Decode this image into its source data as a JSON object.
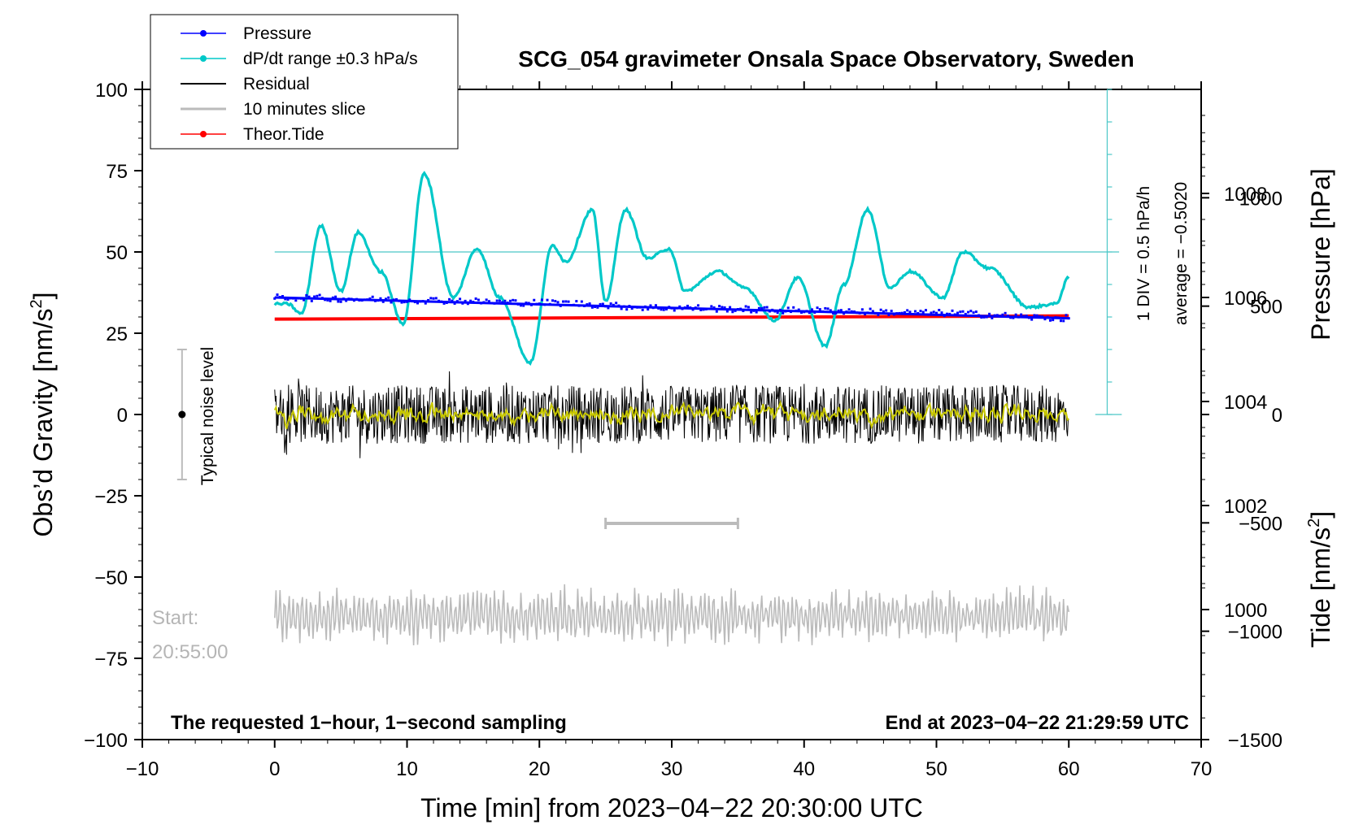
{
  "chart_data": {
    "type": "line",
    "title": "SCG_054 gravimeter Onsala Space Observatory, Sweden",
    "xlabel": "Time [min] from 2023−04−22 20:30:00 UTC",
    "xlim": [
      -10,
      70
    ],
    "xticks": [
      "−10",
      "0",
      "10",
      "20",
      "30",
      "40",
      "50",
      "60",
      "70"
    ],
    "ylabel_left": "Obs’d Gravity [nm/s",
    "ylabel_left_unit_exp": "2",
    "ylabel_left_unit_close": "]",
    "ylim_left": [
      -100,
      100
    ],
    "yticks_left": [
      "100",
      "75",
      "50",
      "25",
      "0",
      "−25",
      "−50",
      "−75",
      "−100"
    ],
    "ylabel_pressure": "Pressure [hPa]",
    "ylim_pressure": [
      997.5,
      1010
    ],
    "yticks_pressure": [
      "1008",
      "1006",
      "1004",
      "1002",
      "1000"
    ],
    "ylabel_tide": "Tide [nm/s",
    "ylabel_tide_unit_exp": "2",
    "ylabel_tide_unit_close": "]",
    "ylim_tide": [
      -1500,
      1500
    ],
    "yticks_tide": [
      "1000",
      "500",
      "0",
      "−500",
      "−1000",
      "−1500"
    ],
    "legend": [
      {
        "label": "Pressure",
        "color": "#0000ff",
        "marker": true
      },
      {
        "label": "dP/dt range ±0.3 hPa/s",
        "color": "#00c8c8",
        "marker": true
      },
      {
        "label": "Residual",
        "color": "#000000",
        "marker": false
      },
      {
        "label": "10 minutes slice",
        "color": "#bbbbbb",
        "marker": false
      },
      {
        "label": "Theor.Tide",
        "color": "#ff0000",
        "marker": true
      }
    ],
    "dpdt_scale_line1": "1 DIV = 0.5 hPa/h",
    "dpdt_scale_line2": "average = −0.5020",
    "noise_label": "Typical noise level",
    "noise_range": [
      -20,
      20
    ],
    "start_label": "Start:",
    "start_time": "20:55:00",
    "footer_left": "The requested 1−hour, 1−second sampling",
    "footer_right": "End at 2023−04−22 21:29:59 UTC",
    "slice_range_min": [
      25,
      35
    ],
    "series": [
      {
        "name": "Pressure",
        "color": "#0000ff",
        "axis": "pressure",
        "x": [
          0,
          10,
          20,
          30,
          40,
          50,
          60
        ],
        "values": [
          1006.0,
          1005.95,
          1005.9,
          1005.8,
          1005.75,
          1005.7,
          1005.6
        ]
      },
      {
        "name": "dP/dt",
        "color": "#00c8c8",
        "axis": "left",
        "x": [
          0,
          1,
          2,
          3.5,
          5,
          6.3,
          8,
          9.7,
          11.3,
          13.5,
          15.3,
          17,
          19.3,
          21,
          22,
          24,
          25,
          26.5,
          28.2,
          29.8,
          31,
          33.5,
          35.5,
          37.8,
          39.5,
          41.6,
          43,
          44.8,
          46.5,
          48,
          50.5,
          52,
          54,
          57,
          59,
          60
        ],
        "values": [
          34,
          34,
          31,
          58,
          38,
          56,
          44,
          28,
          74,
          36,
          51,
          36,
          16,
          52,
          47,
          63,
          35,
          63,
          48,
          51,
          38,
          44,
          39,
          29,
          42,
          21,
          40,
          63,
          39,
          44,
          36,
          50,
          45,
          33,
          34,
          42
        ]
      },
      {
        "name": "Residual",
        "color": "#000000",
        "axis": "left",
        "x": [
          0,
          60
        ],
        "values": [
          0,
          0
        ]
      },
      {
        "name": "Theor.Tide",
        "color": "#ff0000",
        "axis": "tide",
        "x": [
          0,
          60
        ],
        "values": [
          440,
          455
        ]
      },
      {
        "name": "10 minutes slice",
        "color": "#bbbbbb",
        "axis": "left",
        "x": [
          0,
          60
        ],
        "values": [
          -62,
          -62
        ]
      }
    ]
  }
}
